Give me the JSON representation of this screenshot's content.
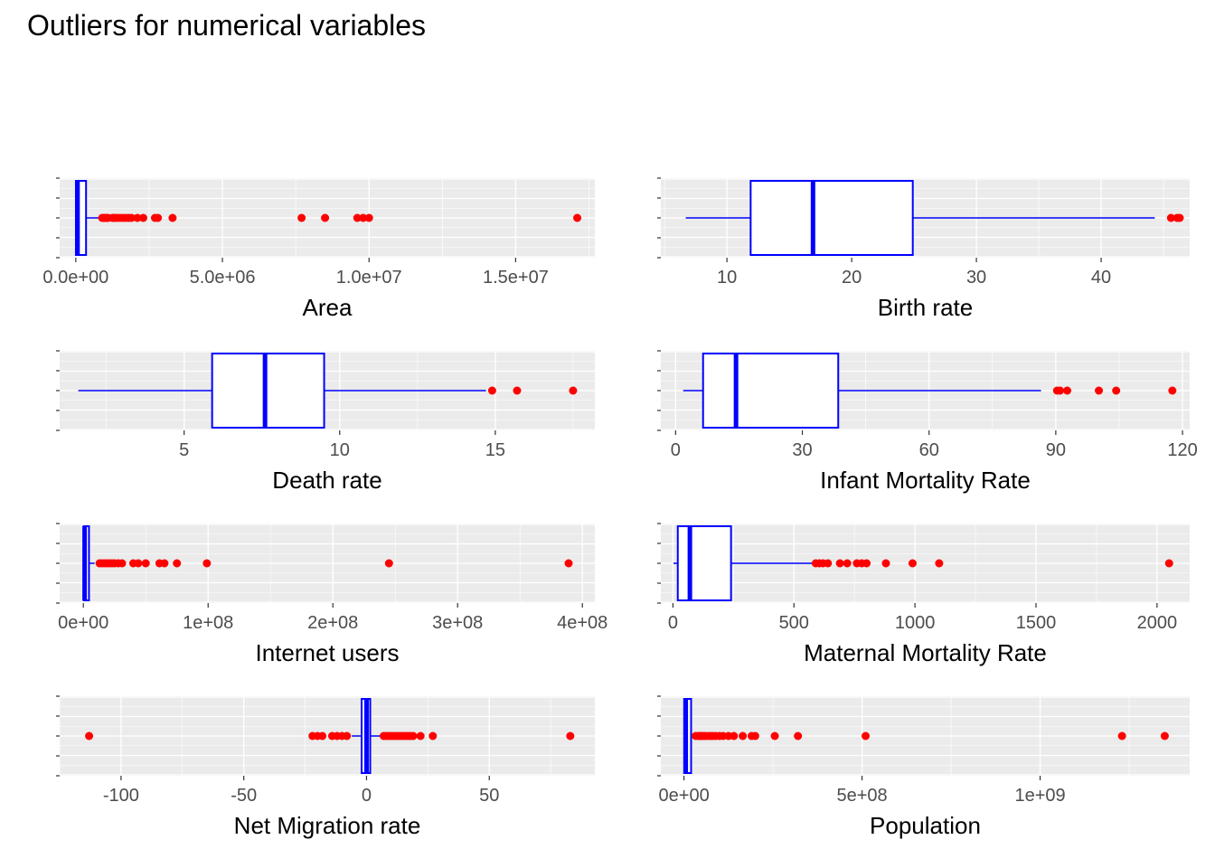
{
  "title": "Outliers for numerical variables",
  "colors": {
    "box": "#0000ff",
    "outlier": "#ff0000",
    "panel": "#ebebeb",
    "grid": "#ffffff"
  },
  "chart_data": [
    {
      "type": "boxplot",
      "xlabel": "Area",
      "xlim": [
        -550000,
        17700000
      ],
      "ticks": [
        0,
        5000000,
        10000000,
        15000000
      ],
      "tick_labels": [
        "0.0e+00",
        "5.0e+06",
        "1.0e+07",
        "1.5e+07"
      ],
      "box": {
        "whisker_low": 0,
        "q1": 4000,
        "median": 60000,
        "q3": 350000,
        "whisker_high": 860000
      },
      "outliers": [
        900000,
        950000,
        1000000,
        1050000,
        1100000,
        1250000,
        1300000,
        1400000,
        1500000,
        1600000,
        1700000,
        1800000,
        1900000,
        2100000,
        2300000,
        2700000,
        2800000,
        3300000,
        7700000,
        8500000,
        9600000,
        9800000,
        10000000,
        17100000
      ]
    },
    {
      "type": "boxplot",
      "xlabel": "Birth rate",
      "xlim": [
        4.7,
        47.1
      ],
      "ticks": [
        10,
        20,
        30,
        40
      ],
      "tick_labels": [
        "10",
        "20",
        "30",
        "40"
      ],
      "box": {
        "whisker_low": 6.7,
        "q1": 11.9,
        "median": 16.9,
        "q3": 24.9,
        "whisker_high": 44.3
      },
      "outliers": [
        45.6,
        46.1,
        46.3
      ]
    },
    {
      "type": "boxplot",
      "xlabel": "Death rate",
      "xlim": [
        1.0,
        18.2
      ],
      "ticks": [
        5,
        10,
        15
      ],
      "tick_labels": [
        "5",
        "10",
        "15"
      ],
      "box": {
        "whisker_low": 1.6,
        "q1": 5.9,
        "median": 7.6,
        "q3": 9.5,
        "whisker_high": 14.7
      },
      "outliers": [
        14.9,
        15.7,
        17.5
      ]
    },
    {
      "type": "boxplot",
      "xlabel": "Infant Mortality Rate",
      "xlim": [
        -3.5,
        121.7
      ],
      "ticks": [
        0,
        30,
        60,
        90,
        120
      ],
      "tick_labels": [
        "0",
        "30",
        "60",
        "90",
        "120"
      ],
      "box": {
        "whisker_low": 1.8,
        "q1": 6.5,
        "median": 14.3,
        "q3": 38.5,
        "whisker_high": 86.5
      },
      "outliers": [
        90.3,
        91.0,
        92.7,
        100.2,
        104.3,
        117.6
      ]
    },
    {
      "type": "boxplot",
      "xlabel": "Internet users",
      "xlim": [
        -19000000,
        410000000
      ],
      "ticks": [
        0,
        100000000,
        200000000,
        300000000,
        400000000
      ],
      "tick_labels": [
        "0e+00",
        "1e+08",
        "2e+08",
        "3e+08",
        "4e+08"
      ],
      "box": {
        "whisker_low": 0,
        "q1": 300000,
        "median": 1000000,
        "q3": 4500000,
        "whisker_high": 9000000
      },
      "outliers": [
        13000000,
        15000000,
        17000000,
        19000000,
        21000000,
        23000000,
        25000000,
        28000000,
        31000000,
        40000000,
        44000000,
        50000000,
        61000000,
        65000000,
        75000000,
        99000000,
        245000000,
        389000000
      ]
    },
    {
      "type": "boxplot",
      "xlabel": "Maternal Mortality Rate",
      "xlim": [
        -50,
        2135
      ],
      "ticks": [
        0,
        500,
        1000,
        1500,
        2000
      ],
      "tick_labels": [
        "0",
        "500",
        "1000",
        "1500",
        "2000"
      ],
      "box": {
        "whisker_low": 2,
        "q1": 20,
        "median": 70,
        "q3": 240,
        "whisker_high": 580
      },
      "outliers": [
        590,
        605,
        620,
        640,
        690,
        720,
        760,
        780,
        800,
        880,
        990,
        1100,
        2050
      ]
    },
    {
      "type": "boxplot",
      "xlabel": "Net Migration rate",
      "xlim": [
        -125,
        93
      ],
      "ticks": [
        -100,
        -50,
        0,
        50
      ],
      "tick_labels": [
        "-100",
        "-50",
        "0",
        "50"
      ],
      "box": {
        "whisker_low": -6,
        "q1": -2,
        "median": 0,
        "q3": 1.5,
        "whisker_high": 6
      },
      "outliers": [
        -113,
        -22,
        -20,
        -18,
        -14,
        -12,
        -10,
        -8,
        7,
        8,
        9,
        10,
        11,
        12,
        13,
        14,
        15,
        16,
        17,
        18,
        19,
        22,
        27,
        83
      ]
    },
    {
      "type": "boxplot",
      "xlabel": "Population",
      "xlim": [
        -65000000,
        1420000000
      ],
      "ticks": [
        0,
        500000000,
        1000000000
      ],
      "tick_labels": [
        "0e+00",
        "5e+08",
        "1e+09"
      ],
      "box": {
        "whisker_low": 0,
        "q1": 500000,
        "median": 5000000,
        "q3": 20000000,
        "whisker_high": 30000000
      },
      "outliers": [
        33000000,
        40000000,
        45000000,
        50000000,
        55000000,
        60000000,
        68000000,
        75000000,
        82000000,
        90000000,
        100000000,
        110000000,
        125000000,
        140000000,
        165000000,
        190000000,
        200000000,
        255000000,
        320000000,
        510000000,
        1230000000,
        1350000000
      ]
    }
  ]
}
